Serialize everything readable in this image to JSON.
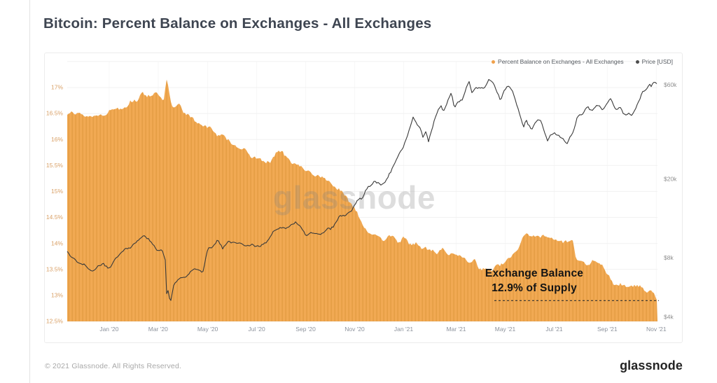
{
  "page": {
    "title": "Bitcoin: Percent Balance on Exchanges - All Exchanges",
    "watermark": "glassnode",
    "footer": {
      "copyright": "© 2021 Glassnode. All Rights Reserved.",
      "brand": "glassnode"
    }
  },
  "legend": {
    "items": [
      {
        "label": "Percent Balance on Exchanges - All Exchanges",
        "color": "#f0a14b"
      },
      {
        "label": "Price [USD]",
        "color": "#4d4d4d"
      }
    ]
  },
  "annotation": {
    "line1": "Exchange Balance",
    "line2": "12.9% of Supply",
    "value_pct": 12.9,
    "dash_color": "#2e2e2e"
  },
  "chart_data": {
    "type": "area+line",
    "title": "Bitcoin: Percent Balance on Exchanges - All Exchanges",
    "legend_position": "top-right",
    "style": {
      "vgrid_color": "#f7f7f7",
      "hgrid_color": "#f1f1f1"
    },
    "x_axis": {
      "color": "#8c929c",
      "ticks": [
        {
          "label": "Jan '20",
          "f": 0.071
        },
        {
          "label": "Mar '20",
          "f": 0.154
        },
        {
          "label": "May '20",
          "f": 0.238
        },
        {
          "label": "Jul '20",
          "f": 0.321
        },
        {
          "label": "Sep '20",
          "f": 0.404
        },
        {
          "label": "Nov '20",
          "f": 0.487
        },
        {
          "label": "Jan '21",
          "f": 0.57
        },
        {
          "label": "Mar '21",
          "f": 0.659
        },
        {
          "label": "May '21",
          "f": 0.742
        },
        {
          "label": "Jul '21",
          "f": 0.825
        },
        {
          "label": "Sep '21",
          "f": 0.915
        },
        {
          "label": "Nov '21",
          "f": 0.998
        }
      ]
    },
    "left_axis": {
      "unit": "percent",
      "color": "#d9a066",
      "range": [
        12.5,
        17.5
      ],
      "gridlines": [
        17.5,
        17,
        16.5,
        16,
        15.5,
        15,
        14.5,
        14,
        13.5,
        13,
        12.5
      ],
      "ticks": [
        {
          "label": "17%",
          "v": 17
        },
        {
          "label": "16.5%",
          "v": 16.5
        },
        {
          "label": "16%",
          "v": 16
        },
        {
          "label": "15.5%",
          "v": 15.5
        },
        {
          "label": "15%",
          "v": 15
        },
        {
          "label": "14.5%",
          "v": 14.5
        },
        {
          "label": "14%",
          "v": 14
        },
        {
          "label": "13.5%",
          "v": 13.5
        },
        {
          "label": "13%",
          "v": 13
        },
        {
          "label": "12.5%",
          "v": 12.5
        }
      ]
    },
    "right_axis": {
      "unit": "USD",
      "scale": "log",
      "color": "#8f8f8f",
      "ticks": [
        {
          "label": "$60k",
          "v": 60000
        },
        {
          "label": "$20k",
          "v": 20000
        },
        {
          "label": "$8k",
          "v": 8000
        },
        {
          "label": "$4k",
          "v": 4000
        }
      ]
    },
    "series": [
      {
        "name": "Percent Balance on Exchanges - All Exchanges",
        "axis": "left",
        "style": "area",
        "fill_base": "#f1a953",
        "fill_stripe": "#e59e45",
        "points": [
          [
            0,
            16.52
          ],
          [
            0.008,
            16.63
          ],
          [
            0.014,
            16.5
          ],
          [
            0.02,
            16.45
          ],
          [
            0.035,
            16.44
          ],
          [
            0.05,
            16.47
          ],
          [
            0.062,
            16.5
          ],
          [
            0.071,
            16.55
          ],
          [
            0.082,
            16.58
          ],
          [
            0.09,
            16.62
          ],
          [
            0.105,
            16.7
          ],
          [
            0.119,
            16.76
          ],
          [
            0.128,
            16.93
          ],
          [
            0.136,
            16.85
          ],
          [
            0.148,
            16.9
          ],
          [
            0.154,
            16.87
          ],
          [
            0.16,
            16.78
          ],
          [
            0.163,
            16.72
          ],
          [
            0.168,
            17.14
          ],
          [
            0.171,
            16.98
          ],
          [
            0.175,
            16.7
          ],
          [
            0.178,
            16.62
          ],
          [
            0.188,
            16.68
          ],
          [
            0.197,
            16.55
          ],
          [
            0.205,
            16.5
          ],
          [
            0.215,
            16.41
          ],
          [
            0.225,
            16.33
          ],
          [
            0.238,
            16.22
          ],
          [
            0.25,
            16.16
          ],
          [
            0.262,
            16.04
          ],
          [
            0.273,
            15.98
          ],
          [
            0.285,
            15.87
          ],
          [
            0.3,
            15.76
          ],
          [
            0.315,
            15.62
          ],
          [
            0.332,
            15.58
          ],
          [
            0.345,
            15.61
          ],
          [
            0.357,
            15.8
          ],
          [
            0.366,
            15.75
          ],
          [
            0.377,
            15.64
          ],
          [
            0.39,
            15.5
          ],
          [
            0.404,
            15.42
          ],
          [
            0.42,
            15.3
          ],
          [
            0.44,
            15.2
          ],
          [
            0.455,
            15.09
          ],
          [
            0.47,
            14.96
          ],
          [
            0.481,
            14.81
          ],
          [
            0.492,
            14.55
          ],
          [
            0.503,
            14.34
          ],
          [
            0.513,
            14.21
          ],
          [
            0.523,
            14.14
          ],
          [
            0.535,
            14.1
          ],
          [
            0.546,
            14.16
          ],
          [
            0.558,
            14
          ],
          [
            0.57,
            14.08
          ],
          [
            0.582,
            13.96
          ],
          [
            0.6,
            13.95
          ],
          [
            0.614,
            13.88
          ],
          [
            0.626,
            13.78
          ],
          [
            0.637,
            13.86
          ],
          [
            0.647,
            13.73
          ],
          [
            0.655,
            13.81
          ],
          [
            0.666,
            13.7
          ],
          [
            0.678,
            13.63
          ],
          [
            0.689,
            13.67
          ],
          [
            0.701,
            13.53
          ],
          [
            0.719,
            13.5
          ],
          [
            0.731,
            13.56
          ],
          [
            0.742,
            13.62
          ],
          [
            0.755,
            13.74
          ],
          [
            0.764,
            13.9
          ],
          [
            0.772,
            14.1
          ],
          [
            0.779,
            14.2
          ],
          [
            0.79,
            14.12
          ],
          [
            0.801,
            14.1
          ],
          [
            0.81,
            14.17
          ],
          [
            0.822,
            14.1
          ],
          [
            0.845,
            14.08
          ],
          [
            0.856,
            14.04
          ],
          [
            0.862,
            13.66
          ],
          [
            0.875,
            13.62
          ],
          [
            0.89,
            13.65
          ],
          [
            0.905,
            13.59
          ],
          [
            0.913,
            13.38
          ],
          [
            0.925,
            13.24
          ],
          [
            0.933,
            13.17
          ],
          [
            0.947,
            13.15
          ],
          [
            0.962,
            13.17
          ],
          [
            0.975,
            13.13
          ],
          [
            0.986,
            13.1
          ],
          [
            0.994,
            13
          ],
          [
            1,
            12.9
          ]
        ]
      },
      {
        "name": "Price [USD]",
        "axis": "right",
        "style": "line",
        "color": "#3a3a3a",
        "points": [
          [
            0,
            8600
          ],
          [
            0.012,
            8000
          ],
          [
            0.022,
            7500
          ],
          [
            0.033,
            7200
          ],
          [
            0.042,
            6900
          ],
          [
            0.052,
            7300
          ],
          [
            0.062,
            7450
          ],
          [
            0.071,
            7200
          ],
          [
            0.082,
            7900
          ],
          [
            0.092,
            8500
          ],
          [
            0.103,
            8850
          ],
          [
            0.113,
            9350
          ],
          [
            0.124,
            10100
          ],
          [
            0.131,
            10350
          ],
          [
            0.141,
            9600
          ],
          [
            0.151,
            8900
          ],
          [
            0.16,
            8700
          ],
          [
            0.166,
            7900
          ],
          [
            0.169,
            4800
          ],
          [
            0.1715,
            5700
          ],
          [
            0.174,
            4550
          ],
          [
            0.181,
            5900
          ],
          [
            0.19,
            6250
          ],
          [
            0.2,
            6450
          ],
          [
            0.21,
            6850
          ],
          [
            0.22,
            7150
          ],
          [
            0.23,
            6900
          ],
          [
            0.238,
            8750
          ],
          [
            0.246,
            8950
          ],
          [
            0.255,
            9750
          ],
          [
            0.263,
            8850
          ],
          [
            0.271,
            9550
          ],
          [
            0.281,
            9700
          ],
          [
            0.292,
            9450
          ],
          [
            0.302,
            9150
          ],
          [
            0.312,
            9350
          ],
          [
            0.321,
            9100
          ],
          [
            0.331,
            9250
          ],
          [
            0.341,
            9650
          ],
          [
            0.35,
            11000
          ],
          [
            0.36,
            11250
          ],
          [
            0.371,
            11300
          ],
          [
            0.381,
            11700
          ],
          [
            0.387,
            11900
          ],
          [
            0.396,
            11350
          ],
          [
            0.405,
            10250
          ],
          [
            0.412,
            10550
          ],
          [
            0.421,
            10800
          ],
          [
            0.431,
            10600
          ],
          [
            0.441,
            11050
          ],
          [
            0.451,
            11550
          ],
          [
            0.461,
            13100
          ],
          [
            0.471,
            13050
          ],
          [
            0.481,
            13800
          ],
          [
            0.491,
            15500
          ],
          [
            0.5,
            16350
          ],
          [
            0.51,
            18100
          ],
          [
            0.52,
            19250
          ],
          [
            0.53,
            18800
          ],
          [
            0.538,
            19300
          ],
          [
            0.546,
            21600
          ],
          [
            0.554,
            23500
          ],
          [
            0.562,
            26500
          ],
          [
            0.57,
            29200
          ],
          [
            0.578,
            33500
          ],
          [
            0.586,
            40200
          ],
          [
            0.592,
            38000
          ],
          [
            0.598,
            35500
          ],
          [
            0.603,
            32000
          ],
          [
            0.607,
            34600
          ],
          [
            0.612,
            30600
          ],
          [
            0.62,
            38200
          ],
          [
            0.628,
            44600
          ],
          [
            0.633,
            46600
          ],
          [
            0.637,
            44000
          ],
          [
            0.645,
            50200
          ],
          [
            0.651,
            55600
          ],
          [
            0.656,
            46500
          ],
          [
            0.663,
            49200
          ],
          [
            0.669,
            50600
          ],
          [
            0.675,
            57200
          ],
          [
            0.681,
            61200
          ],
          [
            0.686,
            55200
          ],
          [
            0.691,
            58200
          ],
          [
            0.696,
            57600
          ],
          [
            0.702,
            59200
          ],
          [
            0.708,
            58200
          ],
          [
            0.714,
            63200
          ],
          [
            0.72,
            63600
          ],
          [
            0.728,
            55200
          ],
          [
            0.734,
            51200
          ],
          [
            0.741,
            57200
          ],
          [
            0.748,
            58200
          ],
          [
            0.754,
            56600
          ],
          [
            0.761,
            49200
          ],
          [
            0.768,
            42200
          ],
          [
            0.773,
            37200
          ],
          [
            0.777,
            40200
          ],
          [
            0.781,
            37600
          ],
          [
            0.786,
            35600
          ],
          [
            0.791,
            37200
          ],
          [
            0.796,
            39200
          ],
          [
            0.801,
            40200
          ],
          [
            0.807,
            35600
          ],
          [
            0.814,
            31600
          ],
          [
            0.819,
            34200
          ],
          [
            0.826,
            34900
          ],
          [
            0.831,
            33600
          ],
          [
            0.836,
            32200
          ],
          [
            0.841,
            31600
          ],
          [
            0.846,
            29900
          ],
          [
            0.851,
            32200
          ],
          [
            0.857,
            34600
          ],
          [
            0.863,
            40200
          ],
          [
            0.869,
            42200
          ],
          [
            0.876,
            44600
          ],
          [
            0.883,
            46200
          ],
          [
            0.889,
            44900
          ],
          [
            0.896,
            47600
          ],
          [
            0.901,
            46900
          ],
          [
            0.907,
            44700
          ],
          [
            0.915,
            48900
          ],
          [
            0.921,
            52200
          ],
          [
            0.926,
            46600
          ],
          [
            0.931,
            45200
          ],
          [
            0.936,
            47600
          ],
          [
            0.941,
            43600
          ],
          [
            0.946,
            41200
          ],
          [
            0.951,
            43900
          ],
          [
            0.956,
            42200
          ],
          [
            0.961,
            44200
          ],
          [
            0.966,
            48200
          ],
          [
            0.971,
            51200
          ],
          [
            0.976,
            55200
          ],
          [
            0.981,
            57600
          ],
          [
            0.986,
            62200
          ],
          [
            0.989,
            60200
          ],
          [
            0.992,
            61600
          ],
          [
            0.995,
            63600
          ],
          [
            0.998,
            61200
          ],
          [
            1,
            62600
          ]
        ]
      }
    ]
  }
}
